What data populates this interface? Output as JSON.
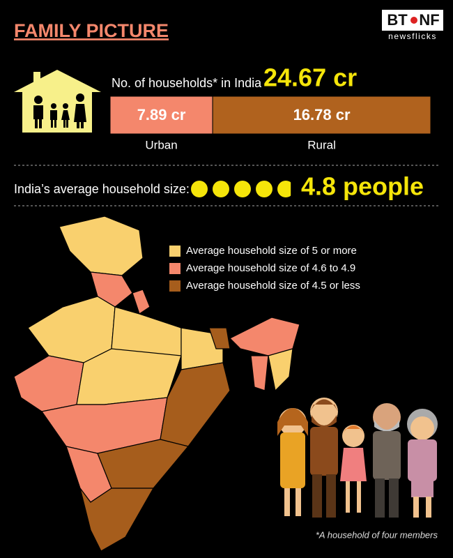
{
  "header": {
    "title": "FAMILY PICTURE",
    "logo_left": "BT",
    "logo_right": "NF",
    "logo_sub": "newsflicks"
  },
  "households": {
    "label": "No. of households* in India",
    "total": "24.67 cr",
    "segments": [
      {
        "name": "Urban",
        "value": 7.89,
        "value_label": "7.89 cr",
        "color": "#f4876c"
      },
      {
        "name": "Rural",
        "value": 16.78,
        "value_label": "16.78 cr",
        "color": "#b0621e"
      }
    ]
  },
  "household_size": {
    "label": "India’s average household size:",
    "value": 4.8,
    "value_label": "4.8 people",
    "color": "#f5e50a"
  },
  "legend": [
    {
      "label": "Average household size of 5 or more",
      "color": "#f9d06e"
    },
    {
      "label": "Average household size of 4.6 to 4.9",
      "color": "#f4876c"
    },
    {
      "label": "Average household size of 4.5 or less",
      "color": "#a65d1c"
    }
  ],
  "footnote": "*A household of four members"
}
